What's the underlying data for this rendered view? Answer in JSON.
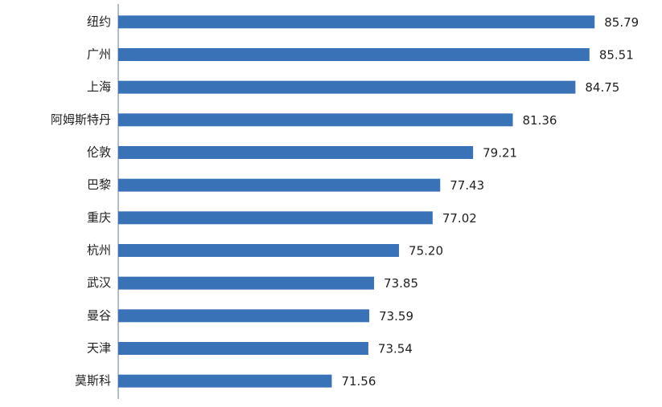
{
  "chart_data": {
    "type": "hbar",
    "categories": [
      "纽约",
      "广州",
      "上海",
      "阿姆斯特丹",
      "伦敦",
      "巴黎",
      "重庆",
      "杭州",
      "武汉",
      "曼谷",
      "天津",
      "莫斯科"
    ],
    "values": [
      85.79,
      85.51,
      84.75,
      81.36,
      79.21,
      77.43,
      77.02,
      75.2,
      73.85,
      73.59,
      73.54,
      71.56
    ],
    "value_labels": [
      "85.79",
      "85.51",
      "84.75",
      "81.36",
      "79.21",
      "77.43",
      "77.02",
      "75.20",
      "73.85",
      "73.59",
      "73.54",
      "71.56"
    ],
    "color": "#3a72b8",
    "xlim": [
      60,
      88
    ]
  }
}
